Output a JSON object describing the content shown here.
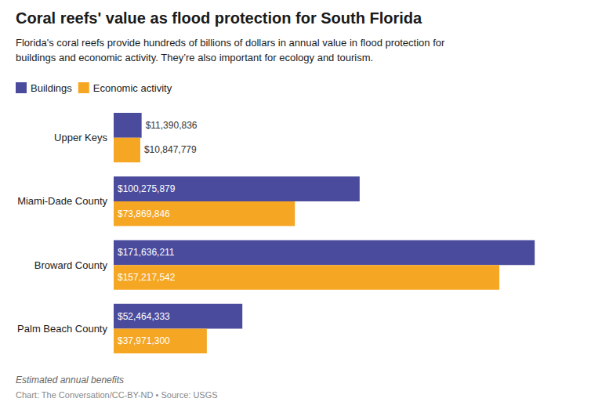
{
  "chart_data": {
    "type": "bar",
    "orientation": "horizontal",
    "title": "Coral reefs' value as flood protection for South Florida",
    "subtitle": "Florida's coral reefs provide hundreds of billions of dollars in annual value in flood protection for\nbuildings and economic activity. They’re also important for ecology and tourism.",
    "annotations": [
      "Estimated annual benefits",
      "Chart: The Conversation/CC-BY-ND • Source: USGS"
    ],
    "categories": [
      "Upper Keys",
      "Miami-Dade County",
      "Broward County",
      "Palm Beach County"
    ],
    "series": [
      {
        "name": "Buildings",
        "color": "#4b4b9e",
        "values": [
          11390836,
          100275879,
          171636211,
          52464333
        ],
        "value_labels": [
          "$11,390,836",
          "$100,275,879",
          "$171,636,211",
          "$52,464,333"
        ]
      },
      {
        "name": "Economic activity",
        "color": "#f5a623",
        "values": [
          10847779,
          73869846,
          157217542,
          37971300
        ],
        "value_labels": [
          "$10,847,779",
          "$73,869,846",
          "$157,217,542",
          "$37,971,300"
        ]
      }
    ],
    "xlim": [
      0,
      185000000
    ],
    "data_labels": true,
    "tick_labels": "y",
    "grid": false,
    "legend": "top left"
  }
}
